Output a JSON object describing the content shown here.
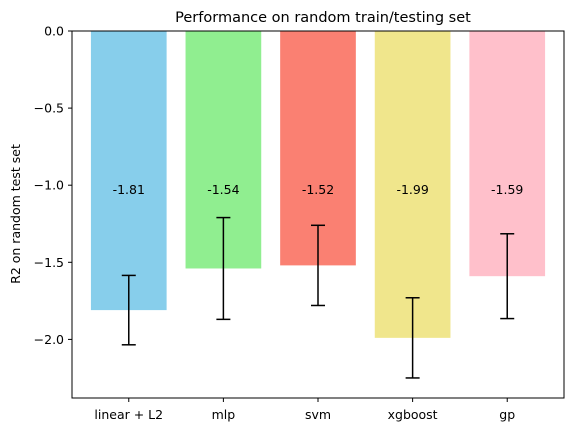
{
  "chart_data": {
    "type": "bar",
    "title": "Performance on random train/testing set",
    "xlabel": "",
    "ylabel": "R2 on random test set",
    "categories": [
      "linear + L2",
      "mlp",
      "svm",
      "xgboost",
      "gp"
    ],
    "values": [
      -1.81,
      -1.54,
      -1.52,
      -1.99,
      -1.59
    ],
    "value_labels": [
      "-1.81",
      "-1.54",
      "-1.52",
      "-1.99",
      "-1.59"
    ],
    "errors": [
      0.225,
      0.33,
      0.26,
      0.26,
      0.275
    ],
    "colors": [
      "#87ceeb",
      "#90ee90",
      "#fa8072",
      "#f0e68c",
      "#ffc0cb"
    ],
    "ylim": [
      -2.38,
      0.0
    ],
    "yticks": [
      0.0,
      -0.5,
      -1.0,
      -1.5,
      -2.0
    ],
    "ytick_labels": [
      "0.0",
      "−0.5",
      "−1.0",
      "−1.5",
      "−2.0"
    ],
    "value_label_y": -1.03,
    "grid": false,
    "legend": "none"
  }
}
